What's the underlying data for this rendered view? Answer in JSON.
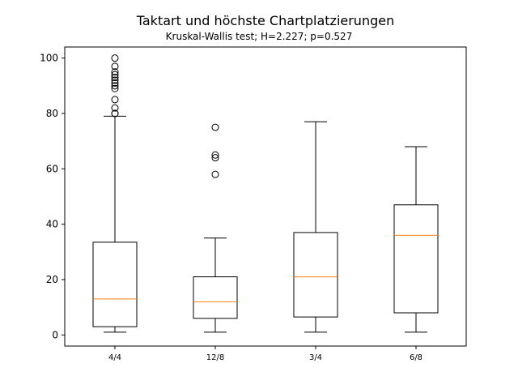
{
  "chart_data": {
    "type": "box",
    "title": "Taktart und höchste Chartplatzierungen",
    "subtitle": "Kruskal-Wallis test; H=2.227; p=0.527",
    "xlabel": "",
    "ylabel": "",
    "ylim": [
      -4,
      104
    ],
    "yticks": [
      0,
      20,
      40,
      60,
      80,
      100
    ],
    "grid": false,
    "categories": [
      "4/4",
      "12/8",
      "3/4",
      "6/8"
    ],
    "boxes": [
      {
        "category": "4/4",
        "whisker_low": 1,
        "q1": 3,
        "median": 13,
        "q3": 33.5,
        "whisker_high": 79,
        "outliers": [
          80,
          80,
          82,
          85,
          89,
          90,
          91,
          92,
          93,
          94,
          95,
          97,
          100
        ]
      },
      {
        "category": "12/8",
        "whisker_low": 1,
        "q1": 6,
        "median": 12,
        "q3": 21,
        "whisker_high": 35,
        "outliers": [
          58,
          64,
          65,
          75
        ]
      },
      {
        "category": "3/4",
        "whisker_low": 1,
        "q1": 6.5,
        "median": 21,
        "q3": 37,
        "whisker_high": 77,
        "outliers": []
      },
      {
        "category": "6/8",
        "whisker_low": 1,
        "q1": 8,
        "median": 36,
        "q3": 47,
        "whisker_high": 68,
        "outliers": []
      }
    ],
    "colors": {
      "box": "#000000",
      "median": "#ff7f0e",
      "outlier": "#000000"
    }
  }
}
